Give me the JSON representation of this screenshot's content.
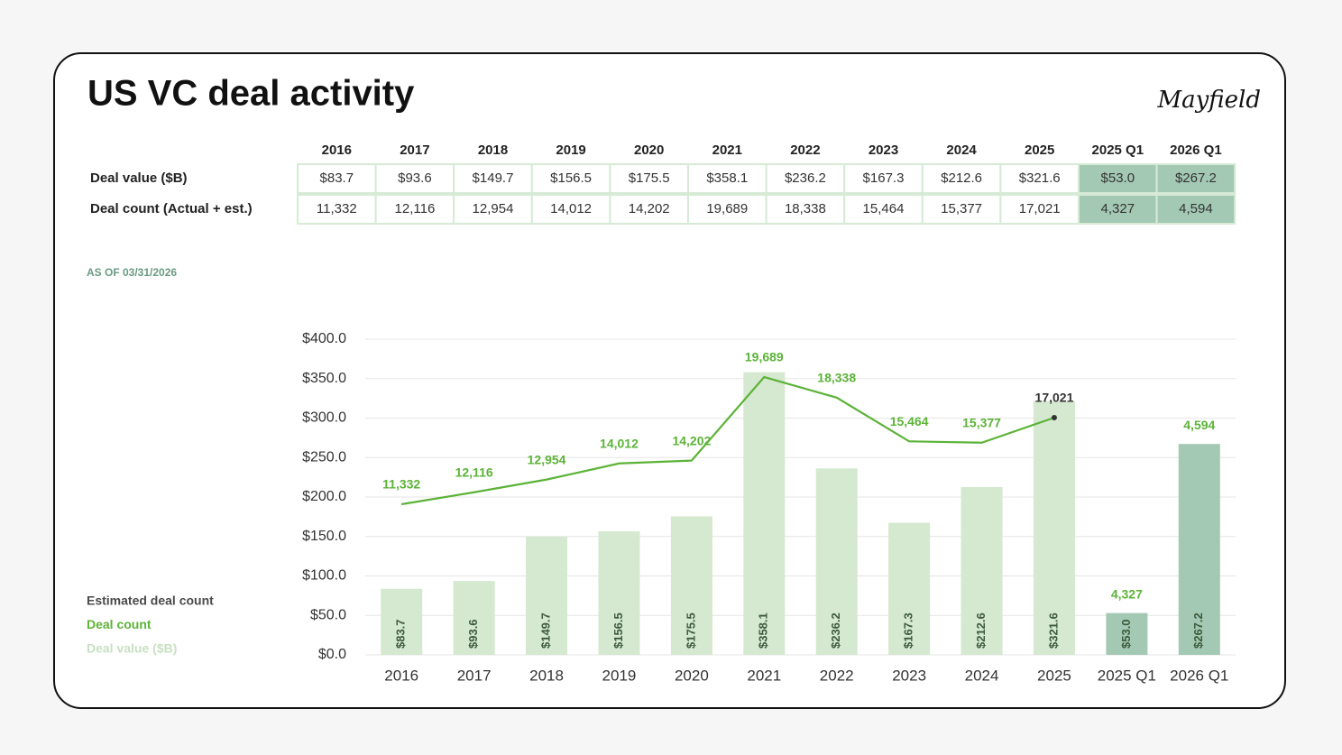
{
  "header": {
    "title": "US VC deal activity",
    "logo": "Mayfield"
  },
  "table": {
    "columns": [
      "2016",
      "2017",
      "2018",
      "2019",
      "2020",
      "2021",
      "2022",
      "2023",
      "2024",
      "2025",
      "2025 Q1",
      "2026 Q1"
    ],
    "rows": [
      {
        "label": "Deal value ($B)",
        "cells": [
          "$83.7",
          "$93.6",
          "$149.7",
          "$156.5",
          "$175.5",
          "$358.1",
          "$236.2",
          "$167.3",
          "$212.6",
          "$321.6",
          "$53.0",
          "$267.2"
        ]
      },
      {
        "label": "Deal count (Actual + est.)",
        "cells": [
          "11,332",
          "12,116",
          "12,954",
          "14,012",
          "14,202",
          "19,689",
          "18,338",
          "15,464",
          "15,377",
          "17,021",
          "4,327",
          "4,594"
        ]
      }
    ]
  },
  "note": "AS OF 03/31/2026",
  "chart_data": {
    "type": "bar",
    "categories": [
      "2016",
      "2017",
      "2018",
      "2019",
      "2020",
      "2021",
      "2022",
      "2023",
      "2024",
      "2025",
      "2025 Q1",
      "2026 Q1"
    ],
    "ylim": [
      0,
      400
    ],
    "yticks": [
      {
        "value": 0,
        "label": "$0.0"
      },
      {
        "value": 50,
        "label": "$50.0"
      },
      {
        "value": 100,
        "label": "$100.0"
      },
      {
        "value": 150,
        "label": "$150.0"
      },
      {
        "value": 200,
        "label": "$200.0"
      },
      {
        "value": 250,
        "label": "$250.0"
      },
      {
        "value": 300,
        "label": "$300.0"
      },
      {
        "value": 350,
        "label": "$350.0"
      },
      {
        "value": 400,
        "label": "$400.0"
      }
    ],
    "y2lim": [
      1430,
      22180
    ],
    "grid": true,
    "series": [
      {
        "name": "Estimated deal count",
        "type": "label",
        "color": "#5cb338",
        "legend_color": "#4a4a4a",
        "values": [
          null,
          null,
          null,
          null,
          null,
          null,
          null,
          null,
          null,
          null,
          4327,
          4594
        ],
        "value_labels": [
          null,
          null,
          null,
          null,
          null,
          null,
          null,
          null,
          null,
          null,
          "4,327",
          "4,594"
        ]
      },
      {
        "name": "Deal count",
        "type": "line",
        "axis": "y2",
        "color": "#5cb338",
        "values": [
          11332,
          12116,
          12954,
          14012,
          14202,
          19689,
          18338,
          15464,
          15377,
          17021,
          null,
          null
        ],
        "value_labels": [
          "11,332",
          "12,116",
          "12,954",
          "14,012",
          "14,202",
          "19,689",
          "18,338",
          "15,464",
          "15,377",
          "17,021",
          null,
          null
        ]
      },
      {
        "name": "Deal value ($B)",
        "type": "bar",
        "color": "#d5e8d0",
        "legend_color": "#c9dfc3",
        "colors": [
          "#d5e8d0",
          "#d5e8d0",
          "#d5e8d0",
          "#d5e8d0",
          "#d5e8d0",
          "#d5e8d0",
          "#d5e8d0",
          "#d5e8d0",
          "#d5e8d0",
          "#d5e8d0",
          "#a3c9b4",
          "#a3c9b4"
        ],
        "values": [
          83.7,
          93.6,
          149.7,
          156.5,
          175.5,
          358.1,
          236.2,
          167.3,
          212.6,
          321.6,
          53.0,
          267.2
        ],
        "value_labels": [
          "$83.7",
          "$93.6",
          "$149.7",
          "$156.5",
          "$175.5",
          "$358.1",
          "$236.2",
          "$167.3",
          "$212.6",
          "$321.6",
          "$53.0",
          "$267.2"
        ]
      }
    ]
  }
}
